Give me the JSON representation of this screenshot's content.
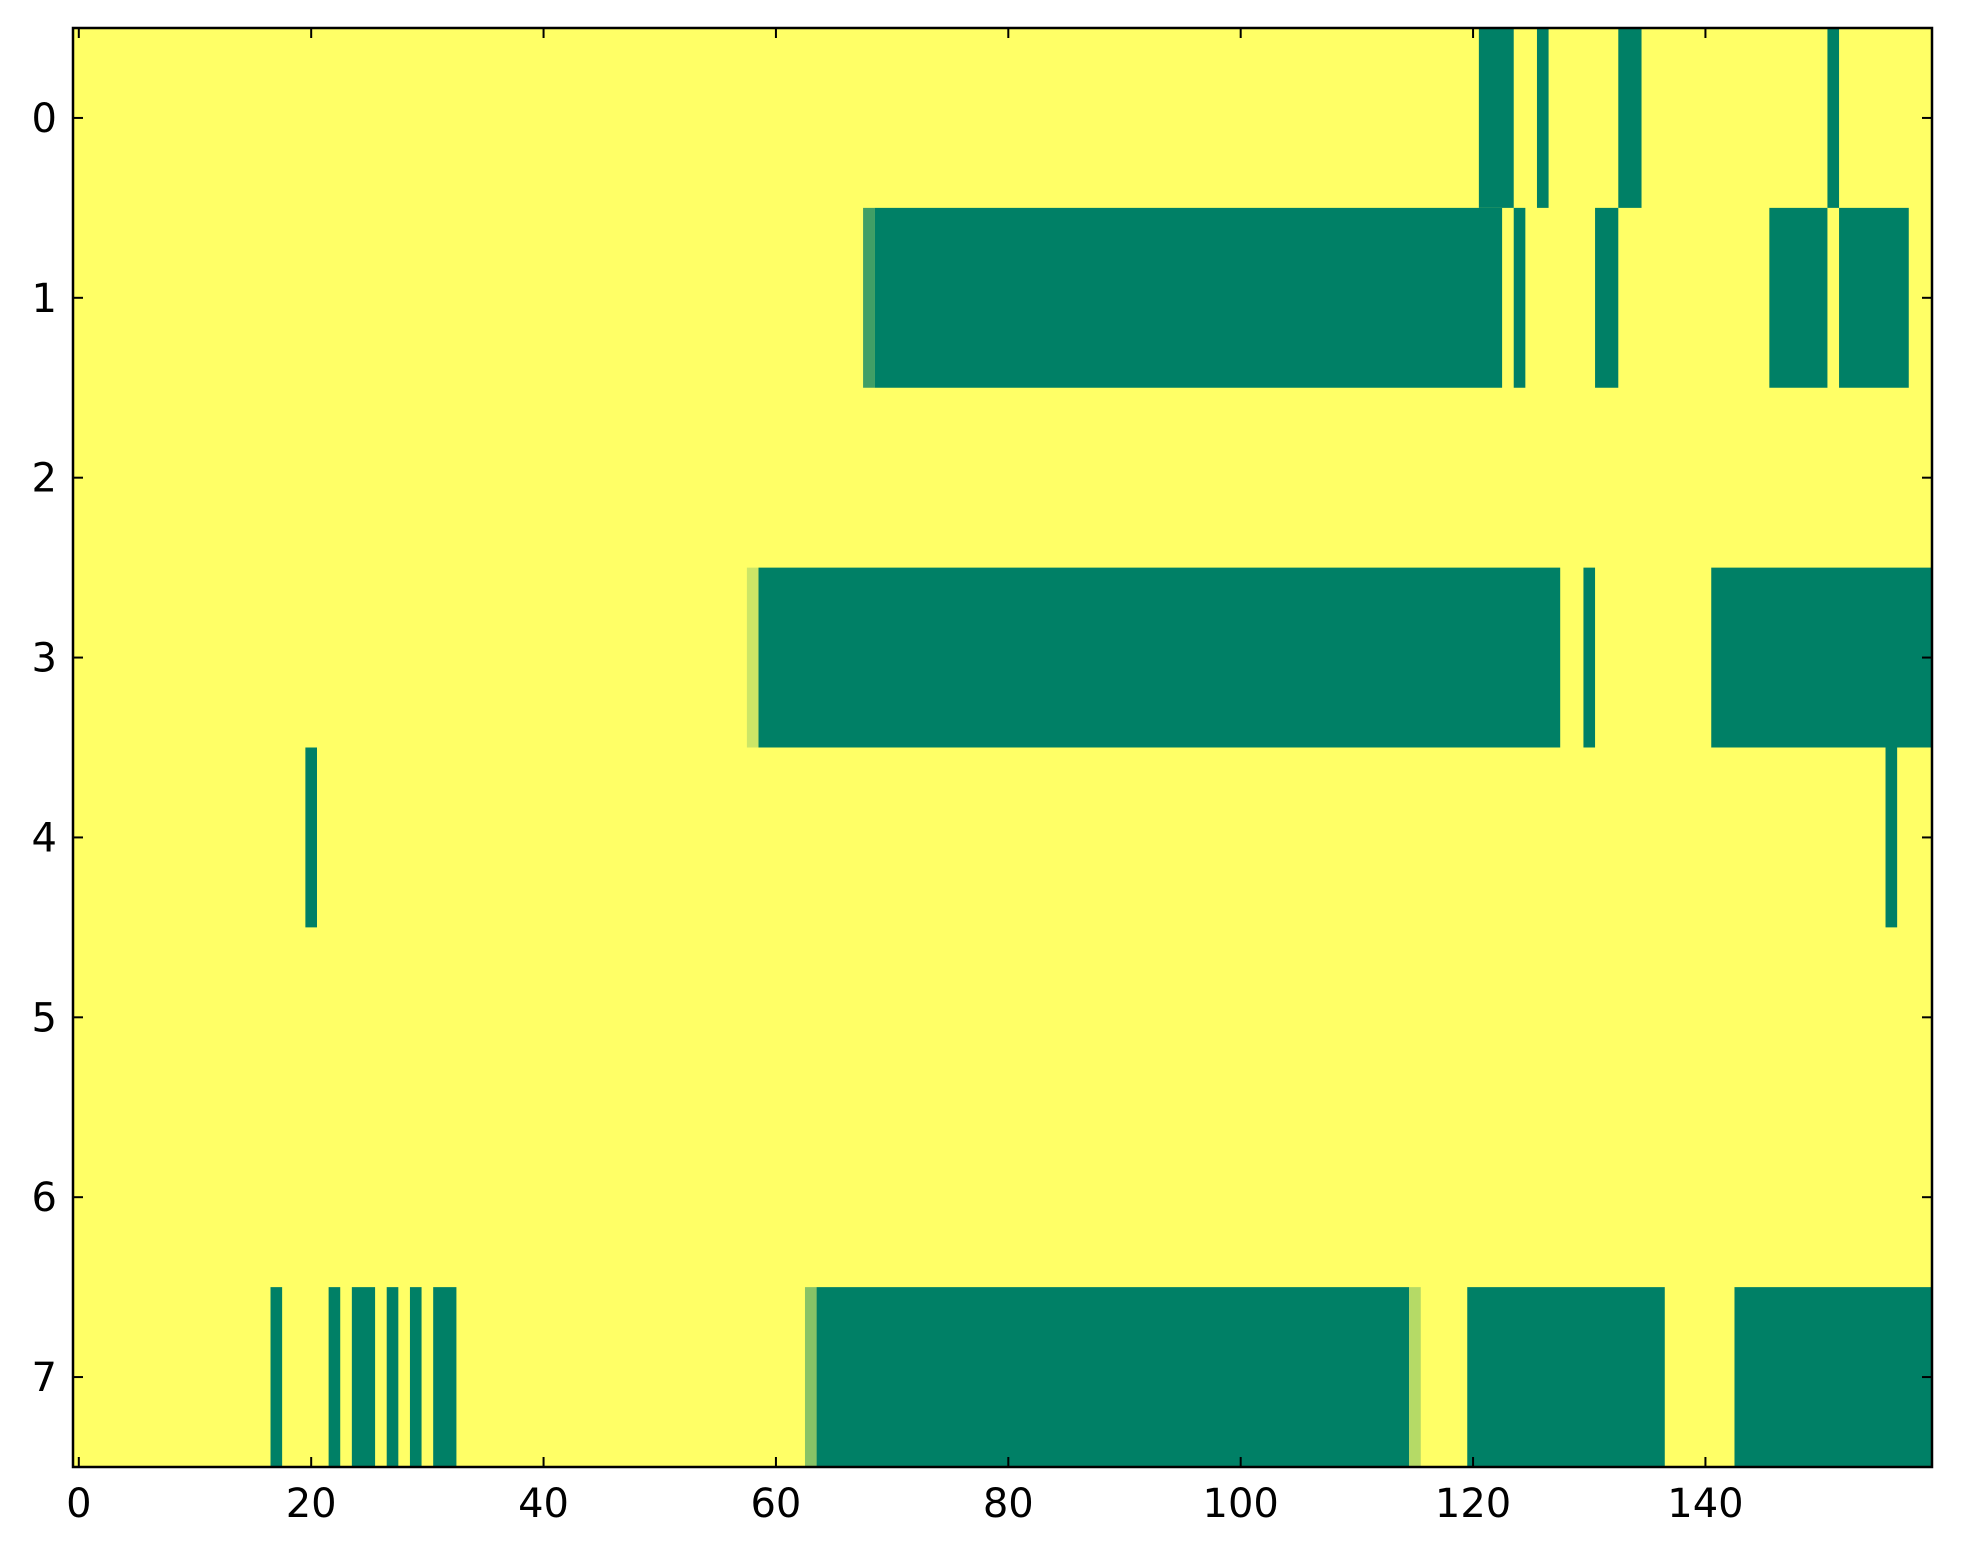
{
  "chart_data": {
    "type": "heatmap",
    "colormap": "summer",
    "color_low": "#008066",
    "color_high": "#ffff66",
    "n_rows": 8,
    "n_cols": 160,
    "default_value": 1,
    "xlim": [
      -0.5,
      159.5
    ],
    "ylim": [
      7.5,
      -0.5
    ],
    "x_ticks": [
      0,
      20,
      40,
      60,
      80,
      100,
      120,
      140
    ],
    "x_tick_labels": [
      "0",
      "20",
      "40",
      "60",
      "80",
      "100",
      "120",
      "140"
    ],
    "y_ticks": [
      0,
      1,
      2,
      3,
      4,
      5,
      6,
      7
    ],
    "y_tick_labels": [
      "0",
      "1",
      "2",
      "3",
      "4",
      "5",
      "6",
      "7"
    ],
    "grid": false,
    "segments": [
      {
        "row": 0,
        "cols": [
          121,
          123
        ],
        "value": 0
      },
      {
        "row": 0,
        "cols": [
          126,
          126
        ],
        "value": 0
      },
      {
        "row": 0,
        "cols": [
          133,
          134
        ],
        "value": 0
      },
      {
        "row": 0,
        "cols": [
          151,
          151
        ],
        "value": 0
      },
      {
        "row": 1,
        "cols": [
          68,
          68
        ],
        "value": 0.25
      },
      {
        "row": 1,
        "cols": [
          69,
          122
        ],
        "value": 0
      },
      {
        "row": 1,
        "cols": [
          124,
          124
        ],
        "value": 0
      },
      {
        "row": 1,
        "cols": [
          131,
          132
        ],
        "value": 0
      },
      {
        "row": 1,
        "cols": [
          146,
          150
        ],
        "value": 0
      },
      {
        "row": 1,
        "cols": [
          152,
          157
        ],
        "value": 0
      },
      {
        "row": 3,
        "cols": [
          58,
          58
        ],
        "value": 0.8
      },
      {
        "row": 3,
        "cols": [
          59,
          127
        ],
        "value": 0
      },
      {
        "row": 3,
        "cols": [
          130,
          130
        ],
        "value": 0
      },
      {
        "row": 3,
        "cols": [
          141,
          159
        ],
        "value": 0
      },
      {
        "row": 4,
        "cols": [
          20,
          20
        ],
        "value": 0
      },
      {
        "row": 4,
        "cols": [
          156,
          156
        ],
        "value": 0
      },
      {
        "row": 7,
        "cols": [
          17,
          17
        ],
        "value": 0
      },
      {
        "row": 7,
        "cols": [
          22,
          22
        ],
        "value": 0
      },
      {
        "row": 7,
        "cols": [
          24,
          25
        ],
        "value": 0
      },
      {
        "row": 7,
        "cols": [
          27,
          27
        ],
        "value": 0
      },
      {
        "row": 7,
        "cols": [
          29,
          29
        ],
        "value": 0
      },
      {
        "row": 7,
        "cols": [
          31,
          32
        ],
        "value": 0
      },
      {
        "row": 7,
        "cols": [
          63,
          63
        ],
        "value": 0.53
      },
      {
        "row": 7,
        "cols": [
          64,
          114
        ],
        "value": 0
      },
      {
        "row": 7,
        "cols": [
          115,
          115
        ],
        "value": 0.71
      },
      {
        "row": 7,
        "cols": [
          120,
          136
        ],
        "value": 0
      },
      {
        "row": 7,
        "cols": [
          143,
          159
        ],
        "value": 0
      }
    ]
  }
}
